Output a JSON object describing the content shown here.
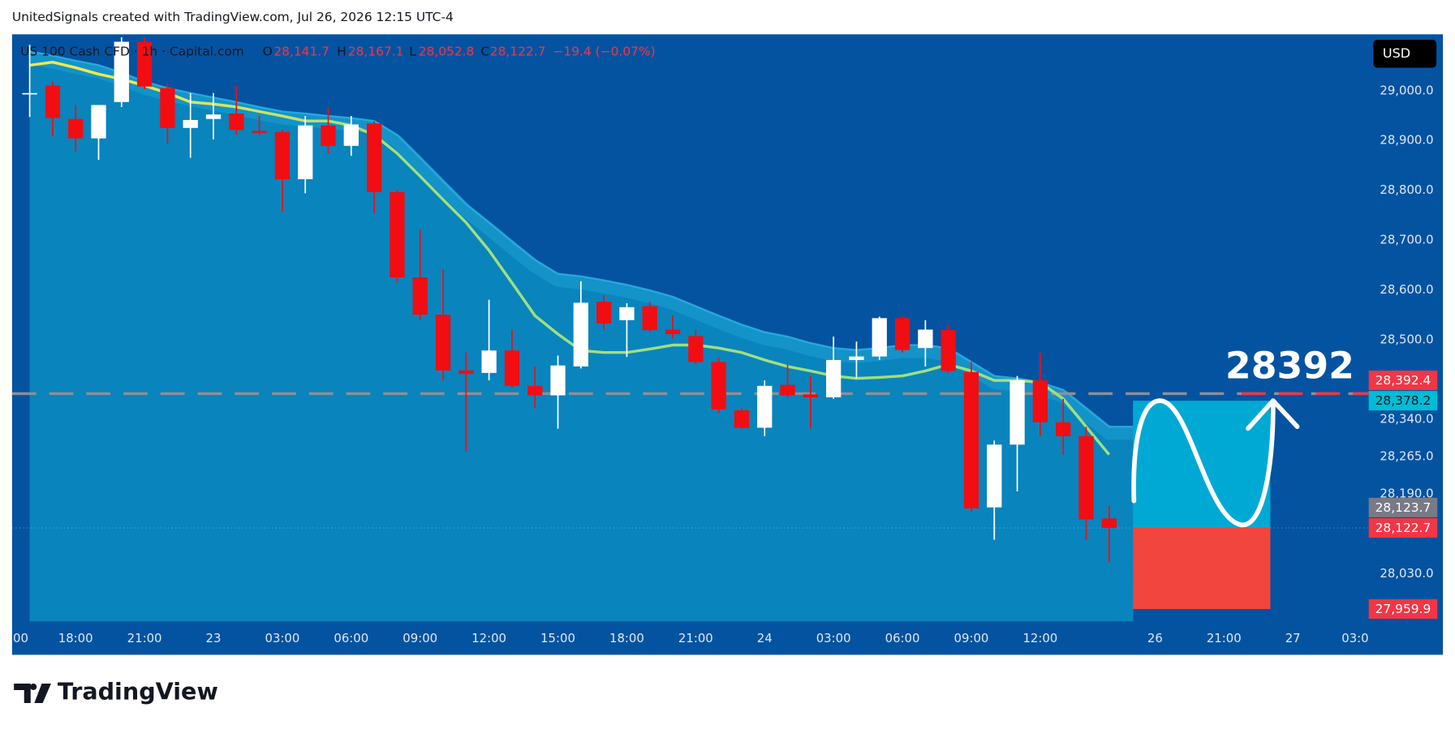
{
  "header": {
    "credit": "UnitedSignals created with TradingView.com, Jul 26, 2026 12:15 UTC-4"
  },
  "footer": {
    "logo": "TradingView"
  },
  "chart_data": {
    "type": "candlestick",
    "title": "US 100 Cash CFD · 1h · Capital.com",
    "legend": [
      {
        "key": "O",
        "value": "28,141.7"
      },
      {
        "key": "H",
        "value": "28,167.1"
      },
      {
        "key": "L",
        "value": "28,052.8"
      },
      {
        "key": "C",
        "value": "28,122.7"
      }
    ],
    "change": "−19.4 (−0.07%)",
    "currency": "USD",
    "annotation": "28392",
    "up_color": "#ffffff",
    "down_color": "#f20d12",
    "ma_color_start": "#f2e84b",
    "ma_color_end": "#9fe07e",
    "band_color": "#2aaee0",
    "categories": [
      "00",
      null,
      null,
      "18:00",
      null,
      null,
      "21:00",
      null,
      null,
      "23",
      null,
      null,
      "03:00",
      null,
      null,
      "06:00",
      null,
      null,
      "09:00",
      null,
      null,
      "12:00",
      null,
      null,
      "15:00",
      null,
      null,
      "18:00",
      null,
      null,
      "21:00",
      null,
      null,
      "24",
      null,
      null,
      "03:00",
      null,
      null,
      "06:00",
      null,
      null,
      "09:00",
      null,
      null,
      "12:00",
      null,
      null,
      null,
      null,
      "26",
      null,
      null,
      "21:00",
      null,
      null,
      "27",
      null,
      null,
      "03:0"
    ],
    "open": [
      null,
      28994,
      29011,
      28944,
      28905,
      28978,
      29099,
      29006,
      28926,
      28944,
      28955,
      28920,
      28918,
      28823,
      28931,
      28890,
      28935,
      28797,
      28626,
      28551,
      28439,
      28434,
      28479,
      28408,
      28389,
      28447,
      28577,
      28540,
      28568,
      28521,
      28508,
      28456,
      28359,
      28324,
      28410,
      28391,
      28385,
      28460,
      28467,
      28544,
      28484,
      28520,
      28436,
      28164,
      28290,
      28419,
      28335,
      28307,
      28141.7,
      null,
      null,
      null,
      null,
      null,
      null,
      null,
      null,
      null,
      null,
      null
    ],
    "high": [
      null,
      29093,
      29019,
      28972,
      28972,
      29108,
      29108,
      29015,
      28996,
      28996,
      29011,
      28950,
      28922,
      28950,
      28968,
      28950,
      28940,
      28801,
      28721,
      28642,
      28475,
      28581,
      28521,
      28447,
      28469,
      28618,
      28590,
      28574,
      28577,
      28549,
      28520,
      28466,
      28363,
      28419,
      28451,
      28428,
      28507,
      28497,
      28547,
      28549,
      28540,
      28531,
      28456,
      28298,
      28428,
      28475,
      28382,
      28326,
      28167.1,
      null,
      null,
      null,
      null,
      null,
      null,
      null,
      null,
      null,
      null,
      null
    ],
    "low": [
      null,
      28948,
      28909,
      28879,
      28862,
      28968,
      29004,
      28894,
      28866,
      28903,
      28912,
      28912,
      28758,
      28795,
      28875,
      28870,
      28754,
      28615,
      28540,
      28419,
      28276,
      28419,
      28404,
      28363,
      28322,
      28443,
      28521,
      28466,
      28516,
      28503,
      28451,
      28354,
      28322,
      28307,
      28385,
      28322,
      28382,
      28423,
      28460,
      28475,
      28447,
      28434,
      28155,
      28099,
      28196,
      28307,
      28270,
      28099,
      28052.8,
      null,
      null,
      null,
      null,
      null,
      null,
      null,
      null,
      null,
      null,
      null
    ],
    "close": [
      null,
      28996,
      28946,
      28905,
      28972,
      29099,
      29009,
      28926,
      28942,
      28953,
      28922,
      28916,
      28823,
      28931,
      28890,
      28933,
      28797,
      28626,
      28551,
      28439,
      28432,
      28479,
      28408,
      28389,
      28449,
      28575,
      28533,
      28566,
      28520,
      28512,
      28456,
      28361,
      28324,
      28408,
      28389,
      28385,
      28460,
      28467,
      28544,
      28480,
      28521,
      28438,
      28162,
      28290,
      28419,
      28335,
      28307,
      28140,
      28122.7,
      null,
      null,
      null,
      null,
      null,
      null,
      null,
      null,
      null,
      null,
      null
    ],
    "ma": [
      null,
      29052,
      29058,
      29047,
      29034,
      29024,
      29011,
      28996,
      28978,
      28974,
      28968,
      28959,
      28950,
      28940,
      28940,
      28931,
      28912,
      28875,
      28829,
      28782,
      28736,
      28680,
      28615,
      28549,
      28512,
      28479,
      28475,
      28475,
      28482,
      28490,
      28490,
      28484,
      28475,
      28460,
      28447,
      28438,
      28428,
      28423,
      28425,
      28428,
      28438,
      28451,
      28438,
      28419,
      28419,
      28415,
      28382,
      28326,
      28270,
      null,
      null,
      null,
      null,
      null,
      null,
      null,
      null,
      null,
      null,
      null
    ],
    "band": [
      null,
      29080,
      29071,
      29061,
      29052,
      29037,
      29019,
      29006,
      28996,
      28987,
      28978,
      28968,
      28959,
      28955,
      28950,
      28946,
      28940,
      28912,
      28866,
      28819,
      28773,
      28736,
      28698,
      28661,
      28633,
      28628,
      28620,
      28611,
      28600,
      28587,
      28568,
      28549,
      28531,
      28516,
      28507,
      28494,
      28484,
      28480,
      28484,
      28490,
      28490,
      28484,
      28456,
      28428,
      28423,
      28415,
      28400,
      28363,
      28326,
      null,
      null,
      null,
      null,
      null,
      null,
      null,
      null,
      null,
      null,
      null
    ],
    "ylim": [
      27935,
      29114
    ],
    "yticks": [
      {
        "value": 29000,
        "label": "29,000.0"
      },
      {
        "value": 28900,
        "label": "28,900.0"
      },
      {
        "value": 28800,
        "label": "28,800.0"
      },
      {
        "value": 28700,
        "label": "28,700.0"
      },
      {
        "value": 28600,
        "label": "28,600.0"
      },
      {
        "value": 28500,
        "label": "28,500.0"
      },
      {
        "value": 28340,
        "label": "28,340.0"
      },
      {
        "value": 28265,
        "label": "28,265.0"
      },
      {
        "value": 28190,
        "label": "28,190.0"
      },
      {
        "value": 28030,
        "label": "28,030.0"
      }
    ],
    "price_tags": [
      {
        "value": 28392.4,
        "label": "28,392.4",
        "color": "#f23645",
        "text_color": "#ffffff"
      },
      {
        "value": 28378.2,
        "label": "28,378.2",
        "color": "#00bcd4",
        "text_color": "#0b1b2b"
      },
      {
        "value": 28123.7,
        "label": "28,123.7",
        "color": "#787b86",
        "text_color": "#ffffff"
      },
      {
        "value": 28122.7,
        "label": "28,122.7",
        "color": "#f23645",
        "text_color": "#ffffff"
      },
      {
        "value": 27959.9,
        "label": "27,959.9",
        "color": "#f23645",
        "text_color": "#ffffff"
      }
    ],
    "target_color": "#00a9d4",
    "stop_color": "#f2453d"
  }
}
